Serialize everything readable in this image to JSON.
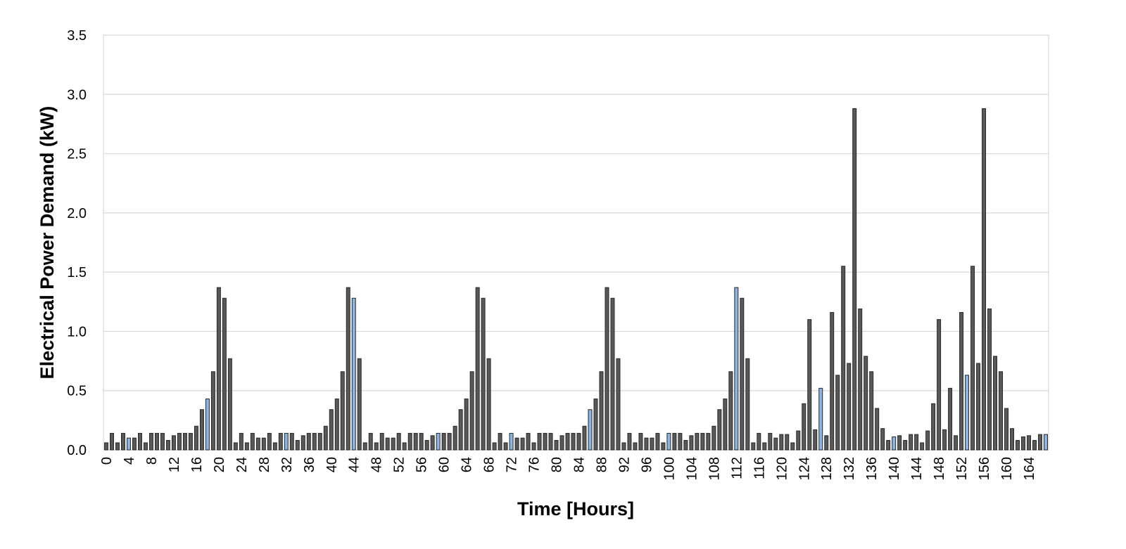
{
  "chart_data": {
    "type": "bar",
    "title": "",
    "xlabel": "Time [Hours]",
    "ylabel": "Electrical Power Demand (kW)",
    "ylim": [
      0,
      3.5
    ],
    "yticks": [
      "0.0",
      "0.5",
      "1.0",
      "1.5",
      "2.0",
      "2.5",
      "3.0",
      "3.5"
    ],
    "x_tick_step": 4,
    "grid": "horizontal",
    "legend": "none",
    "bar_color": "#595959",
    "bar_edge_color": "#262626",
    "highlight_color": "#8eb4e3",
    "categories": [
      0,
      1,
      2,
      3,
      4,
      5,
      6,
      7,
      8,
      9,
      10,
      11,
      12,
      13,
      14,
      15,
      16,
      17,
      18,
      19,
      20,
      21,
      22,
      23,
      24,
      25,
      26,
      27,
      28,
      29,
      30,
      31,
      32,
      33,
      34,
      35,
      36,
      37,
      38,
      39,
      40,
      41,
      42,
      43,
      44,
      45,
      46,
      47,
      48,
      49,
      50,
      51,
      52,
      53,
      54,
      55,
      56,
      57,
      58,
      59,
      60,
      61,
      62,
      63,
      64,
      65,
      66,
      67,
      68,
      69,
      70,
      71,
      72,
      73,
      74,
      75,
      76,
      77,
      78,
      79,
      80,
      81,
      82,
      83,
      84,
      85,
      86,
      87,
      88,
      89,
      90,
      91,
      92,
      93,
      94,
      95,
      96,
      97,
      98,
      99,
      100,
      101,
      102,
      103,
      104,
      105,
      106,
      107,
      108,
      109,
      110,
      111,
      112,
      113,
      114,
      115,
      116,
      117,
      118,
      119,
      120,
      121,
      122,
      123,
      124,
      125,
      126,
      127,
      128,
      129,
      130,
      131,
      132,
      133,
      134,
      135,
      136,
      137,
      138,
      139,
      140,
      141,
      142,
      143,
      144,
      145,
      146,
      147,
      148,
      149,
      150,
      151,
      152,
      153,
      154,
      155,
      156,
      157,
      158,
      159,
      160,
      161,
      162,
      163,
      164,
      165,
      166,
      167
    ],
    "values": [
      0.06,
      0.14,
      0.06,
      0.14,
      0.1,
      0.1,
      0.14,
      0.06,
      0.14,
      0.14,
      0.14,
      0.08,
      0.12,
      0.14,
      0.14,
      0.14,
      0.2,
      0.34,
      0.43,
      0.66,
      1.37,
      1.28,
      0.77,
      0.06,
      0.14,
      0.06,
      0.14,
      0.1,
      0.1,
      0.14,
      0.06,
      0.14,
      0.14,
      0.14,
      0.08,
      0.12,
      0.14,
      0.14,
      0.14,
      0.2,
      0.34,
      0.43,
      0.66,
      1.37,
      1.28,
      0.77,
      0.06,
      0.14,
      0.06,
      0.14,
      0.1,
      0.1,
      0.14,
      0.06,
      0.14,
      0.14,
      0.14,
      0.08,
      0.12,
      0.14,
      0.14,
      0.14,
      0.2,
      0.34,
      0.43,
      0.66,
      1.37,
      1.28,
      0.77,
      0.06,
      0.14,
      0.06,
      0.14,
      0.1,
      0.1,
      0.14,
      0.06,
      0.14,
      0.14,
      0.14,
      0.08,
      0.12,
      0.14,
      0.14,
      0.14,
      0.2,
      0.34,
      0.43,
      0.66,
      1.37,
      1.28,
      0.77,
      0.06,
      0.14,
      0.06,
      0.14,
      0.1,
      0.1,
      0.14,
      0.06,
      0.14,
      0.14,
      0.14,
      0.08,
      0.12,
      0.14,
      0.14,
      0.14,
      0.2,
      0.34,
      0.43,
      0.66,
      1.37,
      1.28,
      0.77,
      0.06,
      0.14,
      0.06,
      0.14,
      0.1,
      0.13,
      0.13,
      0.06,
      0.16,
      0.39,
      1.1,
      0.17,
      0.52,
      0.12,
      1.16,
      0.63,
      1.55,
      0.73,
      2.88,
      1.19,
      0.79,
      0.66,
      0.35,
      0.18,
      0.08,
      0.11,
      0.12,
      0.08,
      0.13,
      0.13,
      0.06,
      0.16,
      0.39,
      1.1,
      0.17,
      0.52,
      0.12,
      1.16,
      0.63,
      1.55,
      0.73,
      2.88,
      1.19,
      0.79,
      0.66,
      0.35,
      0.18,
      0.08,
      0.11,
      0.12,
      0.08,
      0.13,
      0.13
    ],
    "highlighted_bars": [
      4,
      18,
      32,
      44,
      59,
      72,
      86,
      100,
      112,
      127,
      140,
      153,
      167
    ]
  }
}
